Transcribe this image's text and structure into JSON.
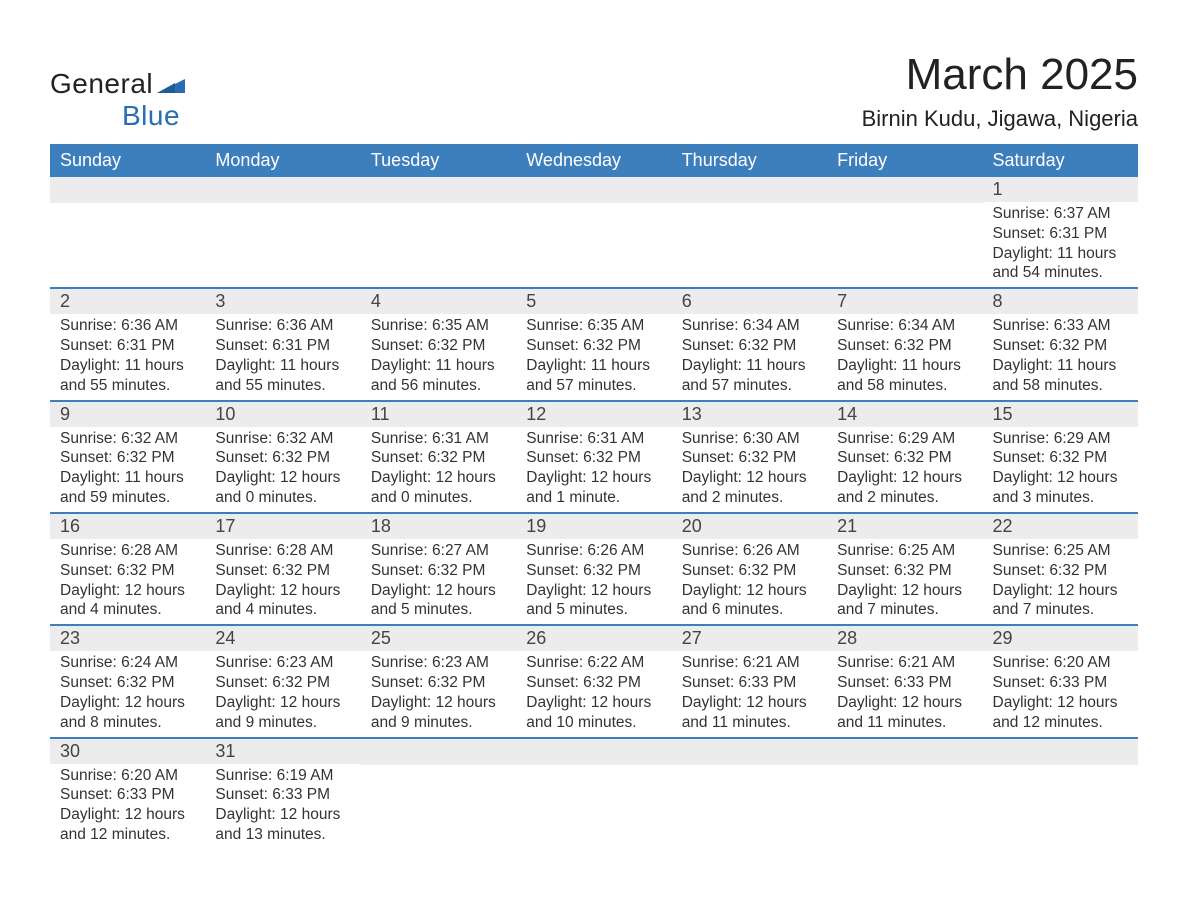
{
  "brand": {
    "word1": "General",
    "word2": "Blue"
  },
  "title": "March 2025",
  "location": "Birnin Kudu, Jigawa, Nigeria",
  "colors": {
    "header_bg": "#3d7ebd",
    "header_text": "#ffffff",
    "daynum_bg": "#ececec",
    "week_divider": "#3d7ebd",
    "text": "#333333",
    "brand_blue": "#2a6db3"
  },
  "day_headers": [
    "Sunday",
    "Monday",
    "Tuesday",
    "Wednesday",
    "Thursday",
    "Friday",
    "Saturday"
  ],
  "weeks": [
    [
      {
        "empty": true
      },
      {
        "empty": true
      },
      {
        "empty": true
      },
      {
        "empty": true
      },
      {
        "empty": true
      },
      {
        "empty": true
      },
      {
        "num": "1",
        "sunrise": "Sunrise: 6:37 AM",
        "sunset": "Sunset: 6:31 PM",
        "daylight": "Daylight: 11 hours and 54 minutes."
      }
    ],
    [
      {
        "num": "2",
        "sunrise": "Sunrise: 6:36 AM",
        "sunset": "Sunset: 6:31 PM",
        "daylight": "Daylight: 11 hours and 55 minutes."
      },
      {
        "num": "3",
        "sunrise": "Sunrise: 6:36 AM",
        "sunset": "Sunset: 6:31 PM",
        "daylight": "Daylight: 11 hours and 55 minutes."
      },
      {
        "num": "4",
        "sunrise": "Sunrise: 6:35 AM",
        "sunset": "Sunset: 6:32 PM",
        "daylight": "Daylight: 11 hours and 56 minutes."
      },
      {
        "num": "5",
        "sunrise": "Sunrise: 6:35 AM",
        "sunset": "Sunset: 6:32 PM",
        "daylight": "Daylight: 11 hours and 57 minutes."
      },
      {
        "num": "6",
        "sunrise": "Sunrise: 6:34 AM",
        "sunset": "Sunset: 6:32 PM",
        "daylight": "Daylight: 11 hours and 57 minutes."
      },
      {
        "num": "7",
        "sunrise": "Sunrise: 6:34 AM",
        "sunset": "Sunset: 6:32 PM",
        "daylight": "Daylight: 11 hours and 58 minutes."
      },
      {
        "num": "8",
        "sunrise": "Sunrise: 6:33 AM",
        "sunset": "Sunset: 6:32 PM",
        "daylight": "Daylight: 11 hours and 58 minutes."
      }
    ],
    [
      {
        "num": "9",
        "sunrise": "Sunrise: 6:32 AM",
        "sunset": "Sunset: 6:32 PM",
        "daylight": "Daylight: 11 hours and 59 minutes."
      },
      {
        "num": "10",
        "sunrise": "Sunrise: 6:32 AM",
        "sunset": "Sunset: 6:32 PM",
        "daylight": "Daylight: 12 hours and 0 minutes."
      },
      {
        "num": "11",
        "sunrise": "Sunrise: 6:31 AM",
        "sunset": "Sunset: 6:32 PM",
        "daylight": "Daylight: 12 hours and 0 minutes."
      },
      {
        "num": "12",
        "sunrise": "Sunrise: 6:31 AM",
        "sunset": "Sunset: 6:32 PM",
        "daylight": "Daylight: 12 hours and 1 minute."
      },
      {
        "num": "13",
        "sunrise": "Sunrise: 6:30 AM",
        "sunset": "Sunset: 6:32 PM",
        "daylight": "Daylight: 12 hours and 2 minutes."
      },
      {
        "num": "14",
        "sunrise": "Sunrise: 6:29 AM",
        "sunset": "Sunset: 6:32 PM",
        "daylight": "Daylight: 12 hours and 2 minutes."
      },
      {
        "num": "15",
        "sunrise": "Sunrise: 6:29 AM",
        "sunset": "Sunset: 6:32 PM",
        "daylight": "Daylight: 12 hours and 3 minutes."
      }
    ],
    [
      {
        "num": "16",
        "sunrise": "Sunrise: 6:28 AM",
        "sunset": "Sunset: 6:32 PM",
        "daylight": "Daylight: 12 hours and 4 minutes."
      },
      {
        "num": "17",
        "sunrise": "Sunrise: 6:28 AM",
        "sunset": "Sunset: 6:32 PM",
        "daylight": "Daylight: 12 hours and 4 minutes."
      },
      {
        "num": "18",
        "sunrise": "Sunrise: 6:27 AM",
        "sunset": "Sunset: 6:32 PM",
        "daylight": "Daylight: 12 hours and 5 minutes."
      },
      {
        "num": "19",
        "sunrise": "Sunrise: 6:26 AM",
        "sunset": "Sunset: 6:32 PM",
        "daylight": "Daylight: 12 hours and 5 minutes."
      },
      {
        "num": "20",
        "sunrise": "Sunrise: 6:26 AM",
        "sunset": "Sunset: 6:32 PM",
        "daylight": "Daylight: 12 hours and 6 minutes."
      },
      {
        "num": "21",
        "sunrise": "Sunrise: 6:25 AM",
        "sunset": "Sunset: 6:32 PM",
        "daylight": "Daylight: 12 hours and 7 minutes."
      },
      {
        "num": "22",
        "sunrise": "Sunrise: 6:25 AM",
        "sunset": "Sunset: 6:32 PM",
        "daylight": "Daylight: 12 hours and 7 minutes."
      }
    ],
    [
      {
        "num": "23",
        "sunrise": "Sunrise: 6:24 AM",
        "sunset": "Sunset: 6:32 PM",
        "daylight": "Daylight: 12 hours and 8 minutes."
      },
      {
        "num": "24",
        "sunrise": "Sunrise: 6:23 AM",
        "sunset": "Sunset: 6:32 PM",
        "daylight": "Daylight: 12 hours and 9 minutes."
      },
      {
        "num": "25",
        "sunrise": "Sunrise: 6:23 AM",
        "sunset": "Sunset: 6:32 PM",
        "daylight": "Daylight: 12 hours and 9 minutes."
      },
      {
        "num": "26",
        "sunrise": "Sunrise: 6:22 AM",
        "sunset": "Sunset: 6:32 PM",
        "daylight": "Daylight: 12 hours and 10 minutes."
      },
      {
        "num": "27",
        "sunrise": "Sunrise: 6:21 AM",
        "sunset": "Sunset: 6:33 PM",
        "daylight": "Daylight: 12 hours and 11 minutes."
      },
      {
        "num": "28",
        "sunrise": "Sunrise: 6:21 AM",
        "sunset": "Sunset: 6:33 PM",
        "daylight": "Daylight: 12 hours and 11 minutes."
      },
      {
        "num": "29",
        "sunrise": "Sunrise: 6:20 AM",
        "sunset": "Sunset: 6:33 PM",
        "daylight": "Daylight: 12 hours and 12 minutes."
      }
    ],
    [
      {
        "num": "30",
        "sunrise": "Sunrise: 6:20 AM",
        "sunset": "Sunset: 6:33 PM",
        "daylight": "Daylight: 12 hours and 12 minutes."
      },
      {
        "num": "31",
        "sunrise": "Sunrise: 6:19 AM",
        "sunset": "Sunset: 6:33 PM",
        "daylight": "Daylight: 12 hours and 13 minutes."
      },
      {
        "empty": true
      },
      {
        "empty": true
      },
      {
        "empty": true
      },
      {
        "empty": true
      },
      {
        "empty": true
      }
    ]
  ]
}
